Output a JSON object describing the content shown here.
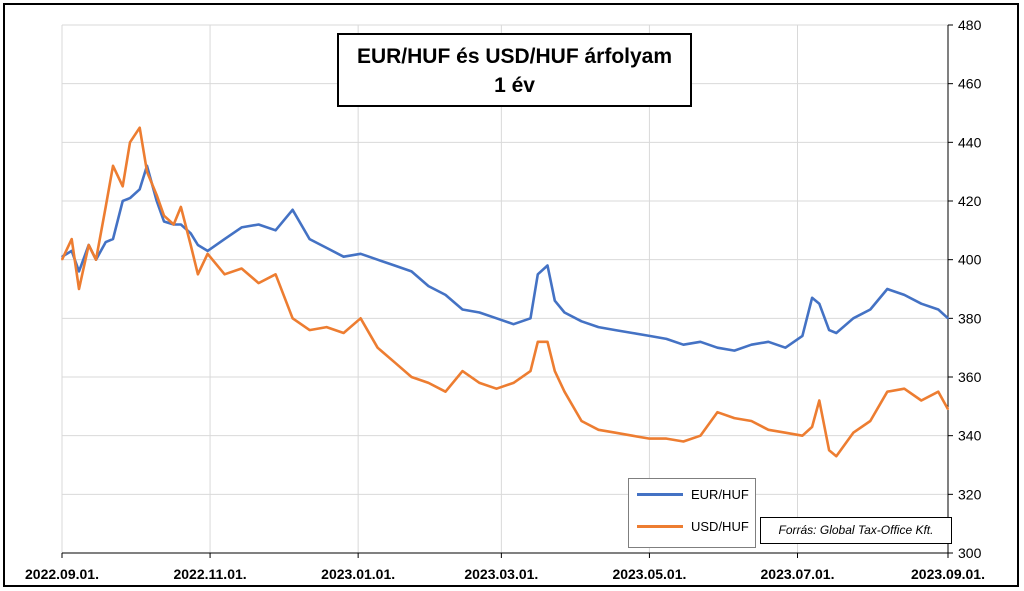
{
  "chart_data": {
    "type": "line",
    "title": "EUR/HUF és USD/HUF árfolyam",
    "subtitle": "1 év",
    "x_tick_labels": [
      "2022.09.01.",
      "2022.11.01.",
      "2023.01.01.",
      "2023.03.01.",
      "2023.05.01.",
      "2023.07.01.",
      "2023.09.01."
    ],
    "x_range": [
      "2022.09.01.",
      "2023.09.01."
    ],
    "ylim": [
      300,
      480
    ],
    "y_ticks": [
      300,
      320,
      340,
      360,
      380,
      400,
      420,
      440,
      460,
      480
    ],
    "y_axis_side": "right",
    "grid": true,
    "legend_position": "bottom-right",
    "source_note": "Forrás: Global Tax-Office Kft.",
    "series": [
      {
        "name": "EUR/HUF",
        "color": "#4472c4",
        "x": [
          "2022-09-01",
          "2022-09-05",
          "2022-09-08",
          "2022-09-12",
          "2022-09-15",
          "2022-09-19",
          "2022-09-22",
          "2022-09-26",
          "2022-09-29",
          "2022-10-03",
          "2022-10-06",
          "2022-10-10",
          "2022-10-13",
          "2022-10-17",
          "2022-10-20",
          "2022-10-24",
          "2022-10-27",
          "2022-10-31",
          "2022-11-07",
          "2022-11-14",
          "2022-11-21",
          "2022-11-28",
          "2022-12-05",
          "2022-12-12",
          "2022-12-19",
          "2022-12-26",
          "2023-01-02",
          "2023-01-09",
          "2023-01-16",
          "2023-01-23",
          "2023-01-30",
          "2023-02-06",
          "2023-02-13",
          "2023-02-20",
          "2023-02-27",
          "2023-03-06",
          "2023-03-13",
          "2023-03-16",
          "2023-03-20",
          "2023-03-23",
          "2023-03-27",
          "2023-04-03",
          "2023-04-10",
          "2023-04-17",
          "2023-04-24",
          "2023-05-01",
          "2023-05-08",
          "2023-05-15",
          "2023-05-22",
          "2023-05-29",
          "2023-06-05",
          "2023-06-12",
          "2023-06-19",
          "2023-06-26",
          "2023-07-03",
          "2023-07-07",
          "2023-07-10",
          "2023-07-14",
          "2023-07-17",
          "2023-07-24",
          "2023-07-31",
          "2023-08-07",
          "2023-08-14",
          "2023-08-21",
          "2023-08-28",
          "2023-09-01"
        ],
        "values": [
          401,
          403,
          396,
          405,
          400,
          406,
          407,
          420,
          421,
          424,
          432,
          420,
          413,
          412,
          412,
          409,
          405,
          403,
          407,
          411,
          412,
          410,
          417,
          407,
          404,
          401,
          402,
          400,
          398,
          396,
          391,
          388,
          383,
          382,
          380,
          378,
          380,
          395,
          398,
          386,
          382,
          379,
          377,
          376,
          375,
          374,
          373,
          371,
          372,
          370,
          369,
          371,
          372,
          370,
          374,
          387,
          385,
          376,
          375,
          380,
          383,
          390,
          388,
          385,
          383,
          380
        ]
      },
      {
        "name": "USD/HUF",
        "color": "#ed7d31",
        "x": [
          "2022-09-01",
          "2022-09-05",
          "2022-09-08",
          "2022-09-12",
          "2022-09-15",
          "2022-09-19",
          "2022-09-22",
          "2022-09-26",
          "2022-09-29",
          "2022-10-03",
          "2022-10-06",
          "2022-10-10",
          "2022-10-13",
          "2022-10-17",
          "2022-10-20",
          "2022-10-24",
          "2022-10-27",
          "2022-10-31",
          "2022-11-07",
          "2022-11-14",
          "2022-11-21",
          "2022-11-28",
          "2022-12-05",
          "2022-12-12",
          "2022-12-19",
          "2022-12-26",
          "2023-01-02",
          "2023-01-09",
          "2023-01-16",
          "2023-01-23",
          "2023-01-30",
          "2023-02-06",
          "2023-02-13",
          "2023-02-20",
          "2023-02-27",
          "2023-03-06",
          "2023-03-13",
          "2023-03-16",
          "2023-03-20",
          "2023-03-23",
          "2023-03-27",
          "2023-04-03",
          "2023-04-10",
          "2023-04-17",
          "2023-04-24",
          "2023-05-01",
          "2023-05-08",
          "2023-05-15",
          "2023-05-22",
          "2023-05-29",
          "2023-06-05",
          "2023-06-12",
          "2023-06-19",
          "2023-06-26",
          "2023-07-03",
          "2023-07-07",
          "2023-07-10",
          "2023-07-14",
          "2023-07-17",
          "2023-07-24",
          "2023-07-31",
          "2023-08-07",
          "2023-08-14",
          "2023-08-21",
          "2023-08-28",
          "2023-09-01"
        ],
        "values": [
          400,
          407,
          390,
          405,
          400,
          418,
          432,
          425,
          440,
          445,
          430,
          422,
          415,
          412,
          418,
          405,
          395,
          402,
          395,
          397,
          392,
          395,
          380,
          376,
          377,
          375,
          380,
          370,
          365,
          360,
          358,
          355,
          362,
          358,
          356,
          358,
          362,
          372,
          372,
          362,
          355,
          345,
          342,
          341,
          340,
          339,
          339,
          338,
          340,
          348,
          346,
          345,
          342,
          341,
          340,
          343,
          352,
          335,
          333,
          341,
          345,
          355,
          356,
          352,
          355,
          349
        ]
      }
    ]
  }
}
